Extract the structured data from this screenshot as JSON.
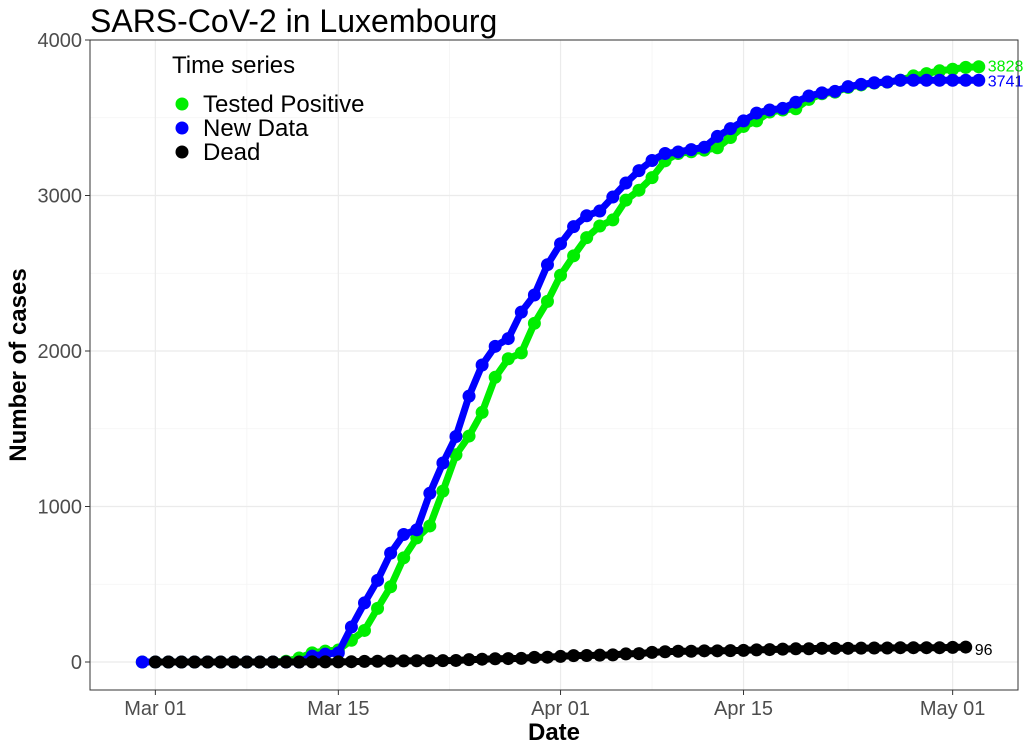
{
  "chart_data": {
    "type": "line",
    "title": "SARS-CoV-2 in Luxembourg",
    "xlabel": "Date",
    "ylabel": "Number of cases",
    "legend_title": "Time series",
    "legend_position": "top-left",
    "grid": true,
    "ylim": [
      -180,
      4000
    ],
    "xlim": [
      "2020-02-25",
      "2020-05-06"
    ],
    "y_ticks": [
      0,
      1000,
      2000,
      3000,
      4000
    ],
    "x_ticks": [
      {
        "date": "2020-03-01",
        "label": "Mar 01"
      },
      {
        "date": "2020-03-15",
        "label": "Mar 15"
      },
      {
        "date": "2020-04-01",
        "label": "Apr 01"
      },
      {
        "date": "2020-04-15",
        "label": "Apr 15"
      },
      {
        "date": "2020-05-01",
        "label": "May 01"
      }
    ],
    "series": [
      {
        "name": "Tested Positive",
        "color": "#00ee00",
        "start_date": "2020-02-29",
        "end_label": "3828",
        "values": [
          0,
          0,
          0,
          0,
          0,
          0,
          0,
          0,
          0,
          0,
          0,
          5,
          26,
          59,
          70,
          77,
          140,
          203,
          345,
          484,
          670,
          798,
          875,
          1099,
          1333,
          1453,
          1605,
          1831,
          1950,
          1988,
          2178,
          2319,
          2487,
          2612,
          2729,
          2804,
          2843,
          2970,
          3034,
          3115,
          3223,
          3270,
          3281,
          3292,
          3307,
          3373,
          3444,
          3480,
          3537,
          3550,
          3558,
          3618,
          3654,
          3665,
          3695,
          3711,
          3723,
          3729,
          3741,
          3769,
          3784,
          3802,
          3812,
          3824,
          3828
        ]
      },
      {
        "name": "New Data",
        "color": "#0000ff",
        "start_date": "2020-02-29",
        "end_label": "3741",
        "values": [
          0,
          0,
          0,
          0,
          0,
          0,
          0,
          0,
          0,
          0,
          0,
          0,
          0,
          38,
          51,
          59,
          225,
          380,
          525,
          700,
          820,
          850,
          1085,
          1280,
          1450,
          1710,
          1910,
          2030,
          2080,
          2250,
          2360,
          2555,
          2690,
          2800,
          2870,
          2900,
          2990,
          3080,
          3160,
          3225,
          3270,
          3280,
          3295,
          3310,
          3380,
          3430,
          3480,
          3530,
          3550,
          3560,
          3600,
          3640,
          3660,
          3670,
          3700,
          3715,
          3725,
          3730,
          3741,
          3741,
          3741,
          3741,
          3741,
          3741,
          3741
        ]
      },
      {
        "name": "Dead",
        "color": "#000000",
        "start_date": "2020-03-01",
        "end_label": "96",
        "values": [
          0,
          0,
          0,
          0,
          0,
          0,
          0,
          0,
          0,
          0,
          0,
          0,
          1,
          1,
          1,
          2,
          4,
          5,
          6,
          7,
          8,
          8,
          9,
          10,
          15,
          18,
          21,
          22,
          23,
          30,
          31,
          36,
          41,
          42,
          44,
          46,
          52,
          54,
          62,
          66,
          69,
          69,
          72,
          72,
          73,
          75,
          78,
          80,
          83,
          85,
          85,
          88,
          88,
          88,
          89,
          90,
          90,
          92,
          92,
          92,
          92,
          94,
          96
        ]
      }
    ]
  }
}
